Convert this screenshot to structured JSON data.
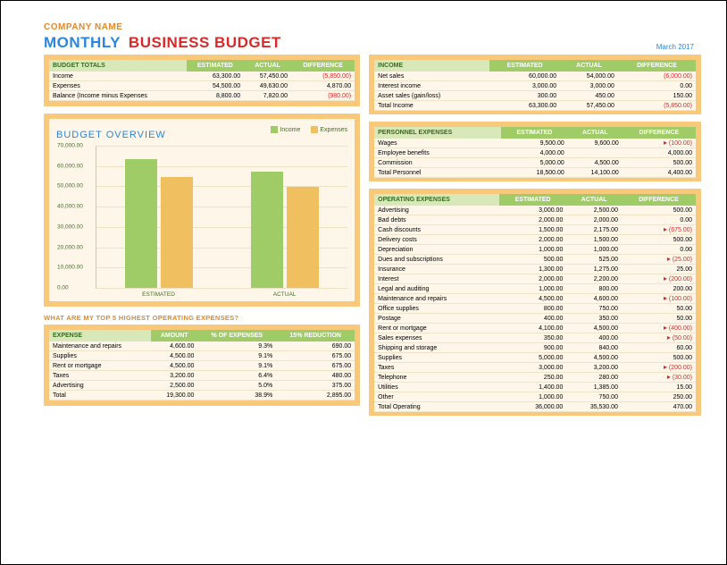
{
  "company": "COMPANY NAME",
  "company_color": "#e28a2b",
  "title": {
    "w1": "MONTHLY",
    "w2": "BUSINESS BUDGET"
  },
  "date": "March 2017",
  "panel_bg": "#f8c97a",
  "table_bg": "#fdf6e9",
  "header_bg": "#a0cc68",
  "header_label_bg": "#d8e8b8",
  "header_label_color": "#386a1f",
  "budget_totals": {
    "label": "BUDGET TOTALS",
    "cols": [
      "ESTIMATED",
      "ACTUAL",
      "DIFFERENCE"
    ],
    "rows": [
      {
        "name": "Income",
        "est": "63,300.00",
        "act": "57,450.00",
        "diff": "(5,850.00)",
        "neg": true
      },
      {
        "name": "Expenses",
        "est": "54,500.00",
        "act": "49,630.00",
        "diff": "4,870.00",
        "neg": false
      },
      {
        "name": "Balance (Income minus Expenses",
        "est": "8,800.00",
        "act": "7,820.00",
        "diff": "(980.00)",
        "neg": true
      }
    ]
  },
  "chart": {
    "title": "BUDGET OVERVIEW",
    "legend": [
      {
        "label": "Income",
        "color": "#a0cc68"
      },
      {
        "label": "Expenses",
        "color": "#f0c060"
      }
    ],
    "categories": [
      "ESTIMATED",
      "ACTUAL"
    ],
    "series": [
      {
        "name": "Income",
        "color": "#a0cc68",
        "values": [
          63300,
          57450
        ]
      },
      {
        "name": "Expenses",
        "color": "#f0c060",
        "values": [
          54500,
          49630
        ]
      }
    ],
    "ymax": 70000,
    "ytick_step": 10000,
    "grid_color": "#eee2c4"
  },
  "top5_title": "WHAT ARE MY TOP 5 HIGHEST OPERATING EXPENSES?",
  "top5": {
    "label": "EXPENSE",
    "cols": [
      "AMOUNT",
      "% OF EXPENSES",
      "15% REDUCTION"
    ],
    "rows": [
      {
        "name": "Maintenance and repairs",
        "amt": "4,600.00",
        "pct": "9.3%",
        "red": "690.00"
      },
      {
        "name": "Supplies",
        "amt": "4,500.00",
        "pct": "9.1%",
        "red": "675.00"
      },
      {
        "name": "Rent or mortgage",
        "amt": "4,500.00",
        "pct": "9.1%",
        "red": "675.00"
      },
      {
        "name": "Taxes",
        "amt": "3,200.00",
        "pct": "6.4%",
        "red": "480.00"
      },
      {
        "name": "Advertising",
        "amt": "2,500.00",
        "pct": "5.0%",
        "red": "375.00"
      }
    ],
    "total": {
      "name": "Total",
      "amt": "19,300.00",
      "pct": "38.9%",
      "red": "2,895.00"
    }
  },
  "income": {
    "label": "INCOME",
    "cols": [
      "ESTIMATED",
      "ACTUAL",
      "DIFFERENCE"
    ],
    "rows": [
      {
        "name": "Net sales",
        "est": "60,000.00",
        "act": "54,000.00",
        "diff": "(6,000.00)",
        "neg": true
      },
      {
        "name": "Interest income",
        "est": "3,000.00",
        "act": "3,000.00",
        "diff": "0.00"
      },
      {
        "name": "Asset sales (gain/loss)",
        "est": "300.00",
        "act": "450.00",
        "diff": "150.00"
      }
    ],
    "total": {
      "name": "Total Income",
      "est": "63,300.00",
      "act": "57,450.00",
      "diff": "(5,850.00)",
      "neg": true
    }
  },
  "personnel": {
    "label": "PERSONNEL EXPENSES",
    "cols": [
      "ESTIMATED",
      "ACTUAL",
      "DIFFERENCE"
    ],
    "rows": [
      {
        "name": "Wages",
        "est": "9,500.00",
        "act": "9,600.00",
        "diff": "(100.00)",
        "neg": true,
        "flag": true
      },
      {
        "name": "Employee benefits",
        "est": "4,000.00",
        "act": "",
        "diff": "4,000.00"
      },
      {
        "name": "Commission",
        "est": "5,000.00",
        "act": "4,500.00",
        "diff": "500.00"
      }
    ],
    "total": {
      "name": "Total Personnel",
      "est": "18,500.00",
      "act": "14,100.00",
      "diff": "4,400.00"
    }
  },
  "operating": {
    "label": "OPERATING EXPENSES",
    "cols": [
      "ESTIMATED",
      "ACTUAL",
      "DIFFERENCE"
    ],
    "rows": [
      {
        "name": "Advertising",
        "est": "3,000.00",
        "act": "2,500.00",
        "diff": "500.00"
      },
      {
        "name": "Bad debts",
        "est": "2,000.00",
        "act": "2,000.00",
        "diff": "0.00"
      },
      {
        "name": "Cash discounts",
        "est": "1,500.00",
        "act": "2,175.00",
        "diff": "(675.00)",
        "neg": true,
        "flag": true
      },
      {
        "name": "Delivery costs",
        "est": "2,000.00",
        "act": "1,500.00",
        "diff": "500.00"
      },
      {
        "name": "Depreciation",
        "est": "1,000.00",
        "act": "1,000.00",
        "diff": "0.00"
      },
      {
        "name": "Dues and subscriptions",
        "est": "500.00",
        "act": "525.00",
        "diff": "(25.00)",
        "neg": true,
        "flag": true
      },
      {
        "name": "Insurance",
        "est": "1,300.00",
        "act": "1,275.00",
        "diff": "25.00"
      },
      {
        "name": "Interest",
        "est": "2,000.00",
        "act": "2,200.00",
        "diff": "(200.00)",
        "neg": true,
        "flag": true
      },
      {
        "name": "Legal and auditing",
        "est": "1,000.00",
        "act": "800.00",
        "diff": "200.00"
      },
      {
        "name": "Maintenance and repairs",
        "est": "4,500.00",
        "act": "4,600.00",
        "diff": "(100.00)",
        "neg": true,
        "flag": true
      },
      {
        "name": "Office supplies",
        "est": "800.00",
        "act": "750.00",
        "diff": "50.00"
      },
      {
        "name": "Postage",
        "est": "400.00",
        "act": "350.00",
        "diff": "50.00"
      },
      {
        "name": "Rent or mortgage",
        "est": "4,100.00",
        "act": "4,500.00",
        "diff": "(400.00)",
        "neg": true,
        "flag": true
      },
      {
        "name": "Sales expenses",
        "est": "350.00",
        "act": "400.00",
        "diff": "(50.00)",
        "neg": true,
        "flag": true
      },
      {
        "name": "Shipping and storage",
        "est": "900.00",
        "act": "840.00",
        "diff": "60.00"
      },
      {
        "name": "Supplies",
        "est": "5,000.00",
        "act": "4,500.00",
        "diff": "500.00"
      },
      {
        "name": "Taxes",
        "est": "3,000.00",
        "act": "3,200.00",
        "diff": "(200.00)",
        "neg": true,
        "flag": true
      },
      {
        "name": "Telephone",
        "est": "250.00",
        "act": "280.00",
        "diff": "(30.00)",
        "neg": true,
        "flag": true
      },
      {
        "name": "Utilities",
        "est": "1,400.00",
        "act": "1,385.00",
        "diff": "15.00"
      },
      {
        "name": "Other",
        "est": "1,000.00",
        "act": "750.00",
        "diff": "250.00"
      }
    ],
    "total": {
      "name": "Total Operating",
      "est": "36,000.00",
      "act": "35,530.00",
      "diff": "470.00"
    }
  }
}
